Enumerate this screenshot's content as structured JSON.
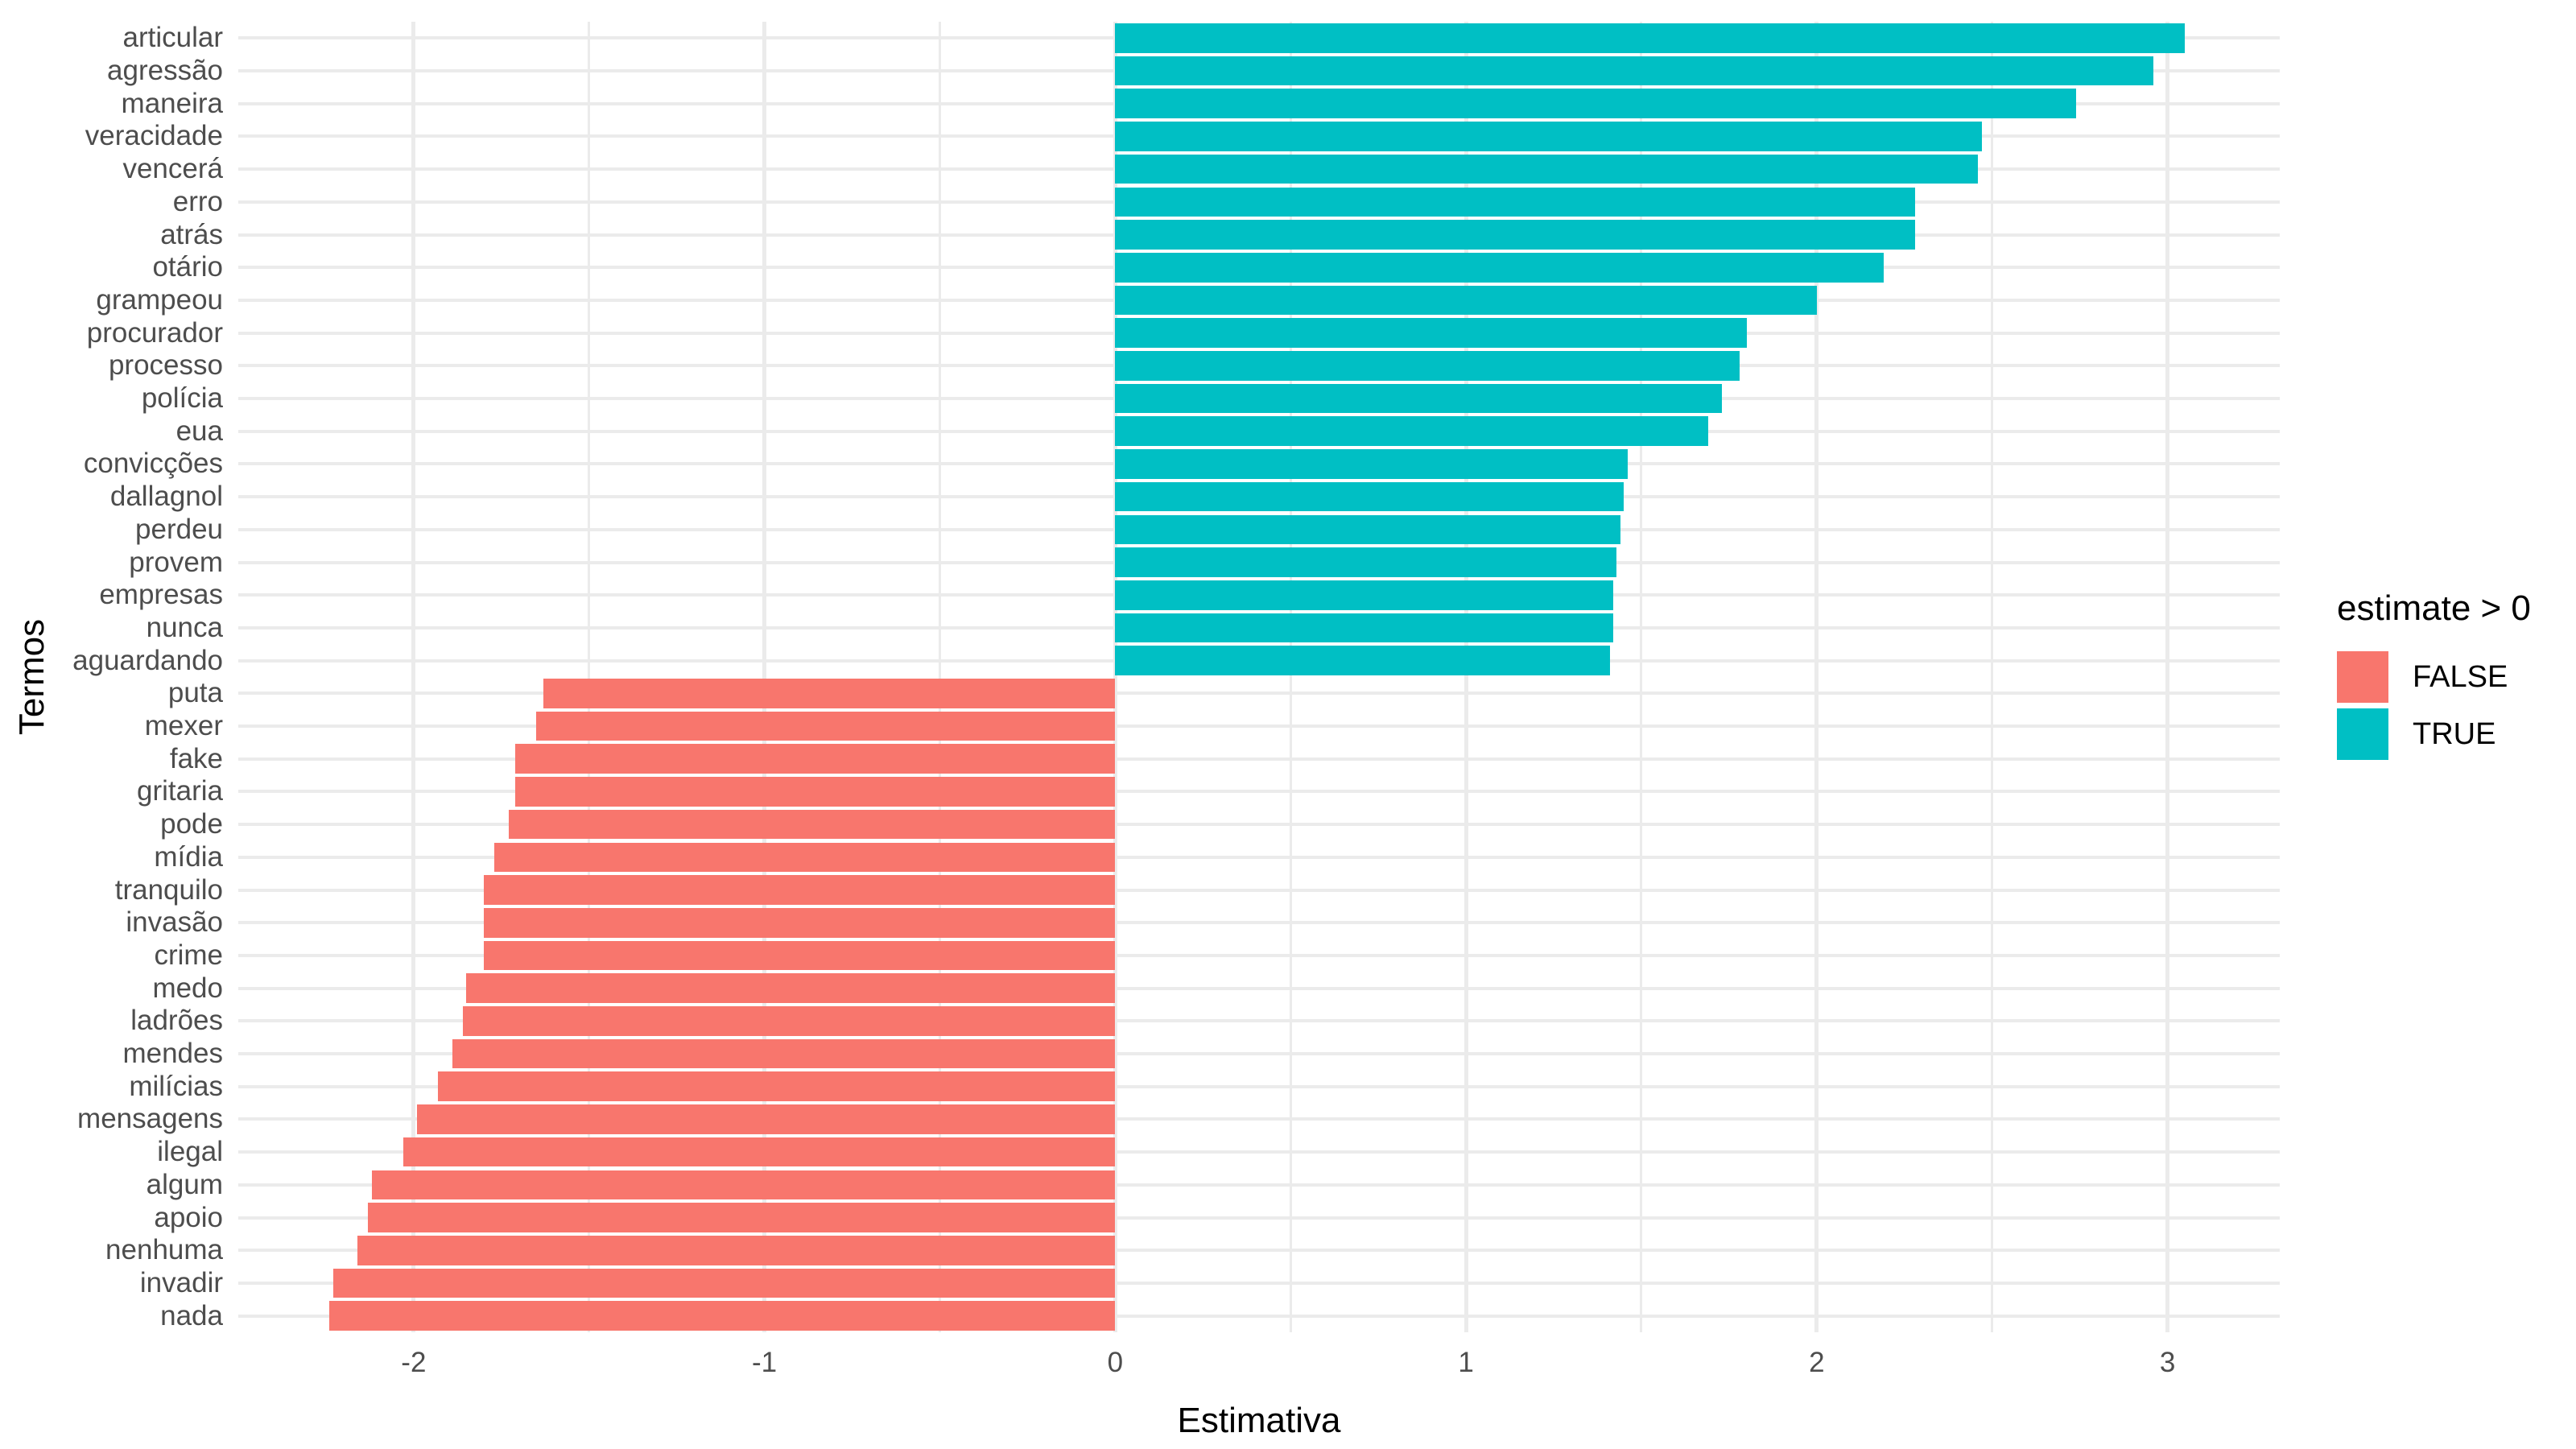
{
  "figure": {
    "background": "#FFFFFF",
    "x_axis_title": "Estimativa",
    "y_axis_title": "Termos",
    "legend": {
      "title": "estimate > 0",
      "items": [
        {
          "label": "FALSE",
          "color": "#F8766D"
        },
        {
          "label": "TRUE",
          "color": "#00BFC4"
        }
      ]
    }
  },
  "chart_data": {
    "type": "bar",
    "orientation": "horizontal",
    "title": "",
    "xlabel": "Estimativa",
    "ylabel": "Termos",
    "legend_title": "estimate > 0",
    "legend_position": "right",
    "grid": true,
    "xlim": [
      -2.5,
      3.32
    ],
    "x_tick_values": [
      -2,
      -1,
      0,
      1,
      2,
      3
    ],
    "x_tick_labels": [
      "-2",
      "-1",
      "0",
      "1",
      "2",
      "3"
    ],
    "x_minor_gridlines": [
      -1.5,
      -0.5,
      0.5,
      1.5,
      2.5
    ],
    "series_colors": {
      "FALSE": "#F8766D",
      "TRUE": "#00BFC4"
    },
    "color_rule": "estimate > 0 ? TRUE : FALSE",
    "categories": [
      "articular",
      "agressão",
      "maneira",
      "veracidade",
      "vencerá",
      "erro",
      "atrás",
      "otário",
      "grampeou",
      "procurador",
      "processo",
      "polícia",
      "eua",
      "convicções",
      "dallagnol",
      "perdeu",
      "provem",
      "empresas",
      "nunca",
      "aguardando",
      "puta",
      "mexer",
      "fake",
      "gritaria",
      "pode",
      "mídia",
      "tranquilo",
      "invasão",
      "crime",
      "medo",
      "ladrões",
      "mendes",
      "milícias",
      "mensagens",
      "ilegal",
      "algum",
      "apoio",
      "nenhuma",
      "invadir",
      "nada"
    ],
    "values": [
      3.05,
      2.96,
      2.74,
      2.47,
      2.46,
      2.28,
      2.28,
      2.19,
      2.0,
      1.8,
      1.78,
      1.73,
      1.69,
      1.46,
      1.45,
      1.44,
      1.43,
      1.42,
      1.42,
      1.41,
      -1.63,
      -1.65,
      -1.71,
      -1.71,
      -1.73,
      -1.77,
      -1.8,
      -1.8,
      -1.8,
      -1.85,
      -1.86,
      -1.89,
      -1.93,
      -1.99,
      -2.03,
      -2.12,
      -2.13,
      -2.16,
      -2.23,
      -2.24
    ]
  }
}
